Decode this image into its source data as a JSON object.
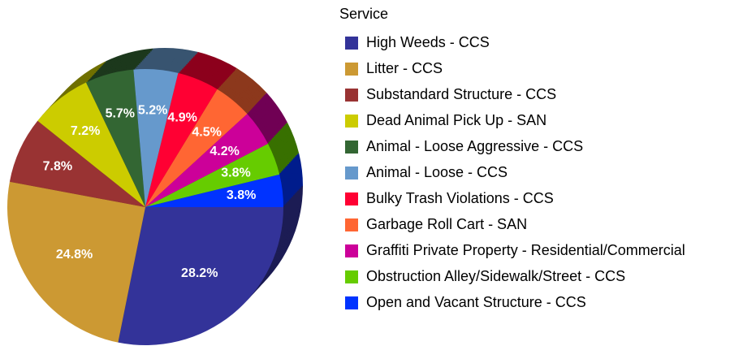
{
  "chart_data": {
    "type": "pie",
    "legend_title": "Service",
    "categories": [
      "High Weeds - CCS",
      "Litter -  CCS",
      "Substandard Structure - CCS",
      "Dead Animal Pick Up - SAN",
      "Animal - Loose Aggressive - CCS",
      "Animal - Loose - CCS",
      "Bulky Trash Violations - CCS",
      "Garbage Roll Cart - SAN",
      "Graffiti Private Property - Residential/Commercial",
      "Obstruction Alley/Sidewalk/Street - CCS",
      "Open and Vacant Structure - CCS"
    ],
    "values": [
      28.2,
      24.8,
      7.8,
      7.2,
      5.7,
      5.2,
      4.9,
      4.5,
      4.2,
      3.8,
      3.8
    ],
    "value_labels": [
      "28.2%",
      "24.8%",
      "7.8%",
      "7.2%",
      "5.7%",
      "5.2%",
      "4.9%",
      "4.5%",
      "4.2%",
      "3.8%",
      "3.8%"
    ],
    "colors": [
      "#333399",
      "#cc9933",
      "#993333",
      "#cccc00",
      "#336633",
      "#6699cc",
      "#ff0033",
      "#ff6633",
      "#cc0099",
      "#66cc00",
      "#0033ff"
    ],
    "legend": "right"
  }
}
